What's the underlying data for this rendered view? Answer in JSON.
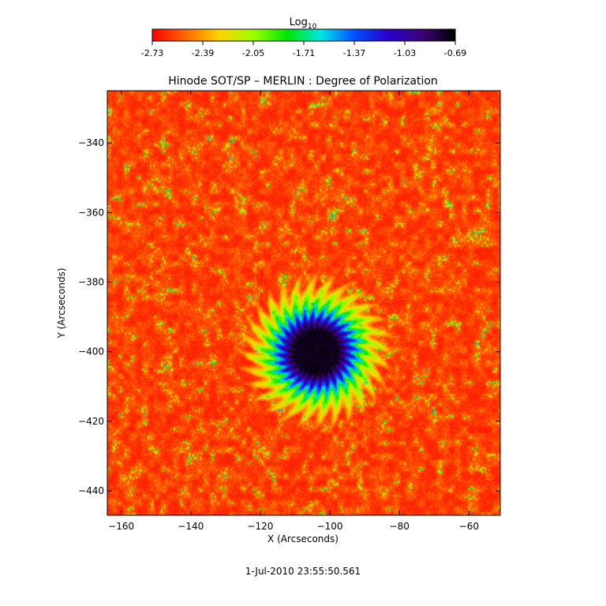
{
  "chart_data": {
    "type": "heatmap",
    "title": "Hinode SOT/SP – MERLIN : Degree of Polarization",
    "xlabel": "X (Arcseconds)",
    "ylabel": "Y (Arcseconds)",
    "timestamp": "1-Jul-2010 23:55:50.561",
    "xlim": [
      -164,
      -51
    ],
    "ylim": [
      -447,
      -325
    ],
    "x_ticks": [
      -160,
      -140,
      -120,
      -100,
      -80,
      -60
    ],
    "y_ticks": [
      -340,
      -360,
      -380,
      -400,
      -420,
      -440
    ],
    "colorbar": {
      "label_base": "Log",
      "label_sub": "10",
      "range": [
        -2.73,
        -0.69
      ],
      "ticks": [
        "-2.73",
        "-2.39",
        "-2.05",
        "-1.71",
        "-1.37",
        "-1.03",
        "-0.69"
      ],
      "colormap": [
        "#ff0000",
        "#ff6a00",
        "#ffd400",
        "#9cff00",
        "#00e600",
        "#00e6e6",
        "#0050ff",
        "#2800c8",
        "#3c0078",
        "#000000"
      ]
    },
    "features": {
      "sunspot_center": [
        -104,
        -400
      ],
      "umbra_radius": 7,
      "penumbra_radius": 14,
      "background_level": -2.65,
      "umbra_level": -0.78
    }
  }
}
